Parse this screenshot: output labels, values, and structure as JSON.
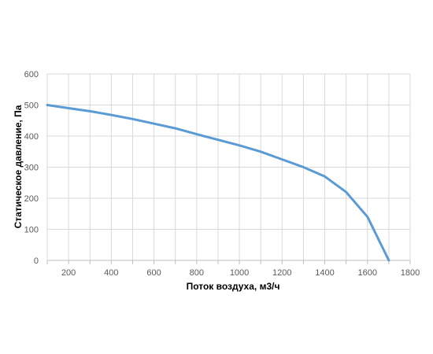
{
  "chart_data": {
    "type": "line",
    "title": "",
    "xlabel": "Поток воздуха, м3/ч",
    "ylabel": "Статическое давление, Па",
    "xlim": [
      100,
      1800
    ],
    "ylim": [
      0,
      600
    ],
    "x_ticks": [
      200,
      400,
      600,
      800,
      1000,
      1200,
      1400,
      1600,
      1800
    ],
    "y_ticks": [
      0,
      100,
      200,
      300,
      400,
      500,
      600
    ],
    "x_minor_step": 100,
    "grid": true,
    "legend": "none",
    "series": [
      {
        "color": "#5B9BD5",
        "x": [
          100,
          200,
          300,
          400,
          500,
          600,
          700,
          800,
          900,
          1000,
          1100,
          1200,
          1300,
          1400,
          1500,
          1600,
          1700
        ],
        "y": [
          500,
          490,
          480,
          468,
          455,
          440,
          425,
          406,
          388,
          370,
          350,
          325,
          300,
          270,
          220,
          140,
          0
        ]
      }
    ]
  }
}
